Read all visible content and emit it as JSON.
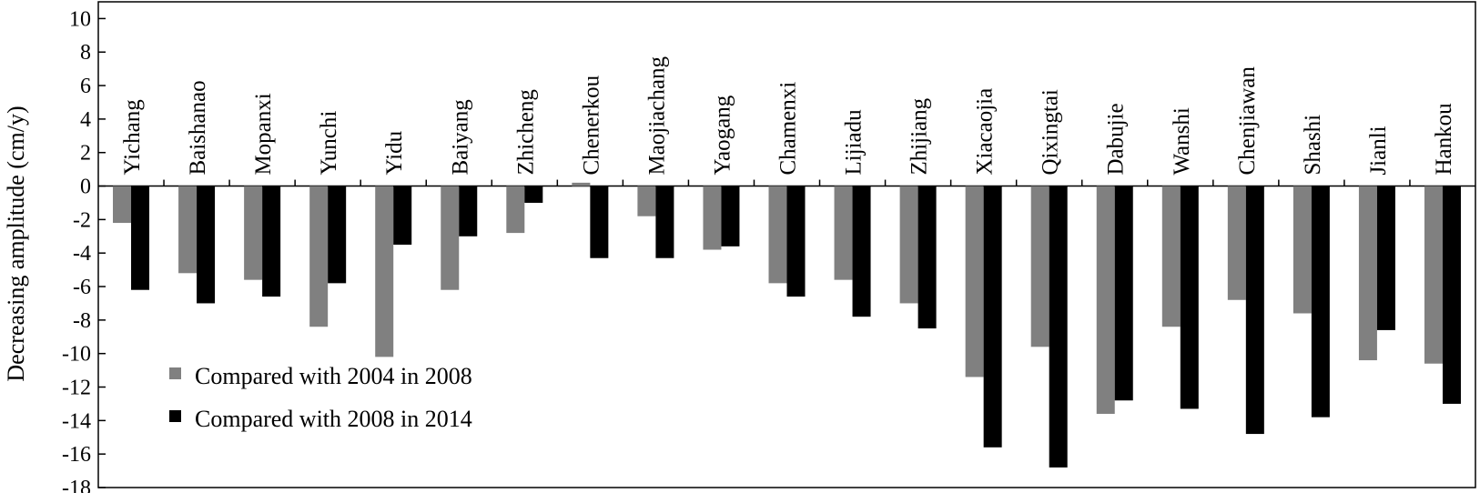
{
  "chart_data": {
    "type": "bar",
    "title": "",
    "xlabel": "",
    "ylabel": "Decreasing amplitude (cm/y)",
    "ylim": [
      -18,
      11
    ],
    "yticks": [
      10,
      8,
      6,
      4,
      2,
      0,
      -2,
      -4,
      -6,
      -8,
      -10,
      -12,
      -14,
      -16,
      -18
    ],
    "legend_position": "bottom-left",
    "grid": false,
    "categories": [
      "Yichang",
      "Baishanao",
      "Mopanxi",
      "Yunchi",
      "Yidu",
      "Baiyang",
      "Zhicheng",
      "Chenerkou",
      "Maojiachang",
      "Yaogang",
      "Chamenxi",
      "Lijiadu",
      "Zhijiang",
      "Xiacaojia",
      "Qixingtai",
      "Dabujie",
      "Wanshi",
      "Chenjiawan",
      "Shashi",
      "Jianli",
      "Hankou"
    ],
    "series": [
      {
        "name": "Compared with 2004 in 2008",
        "color": "#808080",
        "values": [
          -2.2,
          -5.2,
          -5.6,
          -8.4,
          -10.2,
          -6.2,
          -2.8,
          0.2,
          -1.8,
          -3.8,
          -5.8,
          -5.6,
          -7.0,
          -11.4,
          -9.6,
          -13.6,
          -8.4,
          -6.8,
          -7.6,
          -10.4,
          -10.6
        ]
      },
      {
        "name": "Compared with 2008 in 2014",
        "color": "#000000",
        "values": [
          -6.2,
          -7.0,
          -6.6,
          -5.8,
          -3.5,
          -3.0,
          -1.0,
          -4.3,
          -4.3,
          -3.6,
          -6.6,
          -7.8,
          -8.5,
          -15.6,
          -16.8,
          -12.8,
          -13.3,
          -14.8,
          -13.8,
          -8.6,
          -13.0
        ]
      }
    ]
  }
}
